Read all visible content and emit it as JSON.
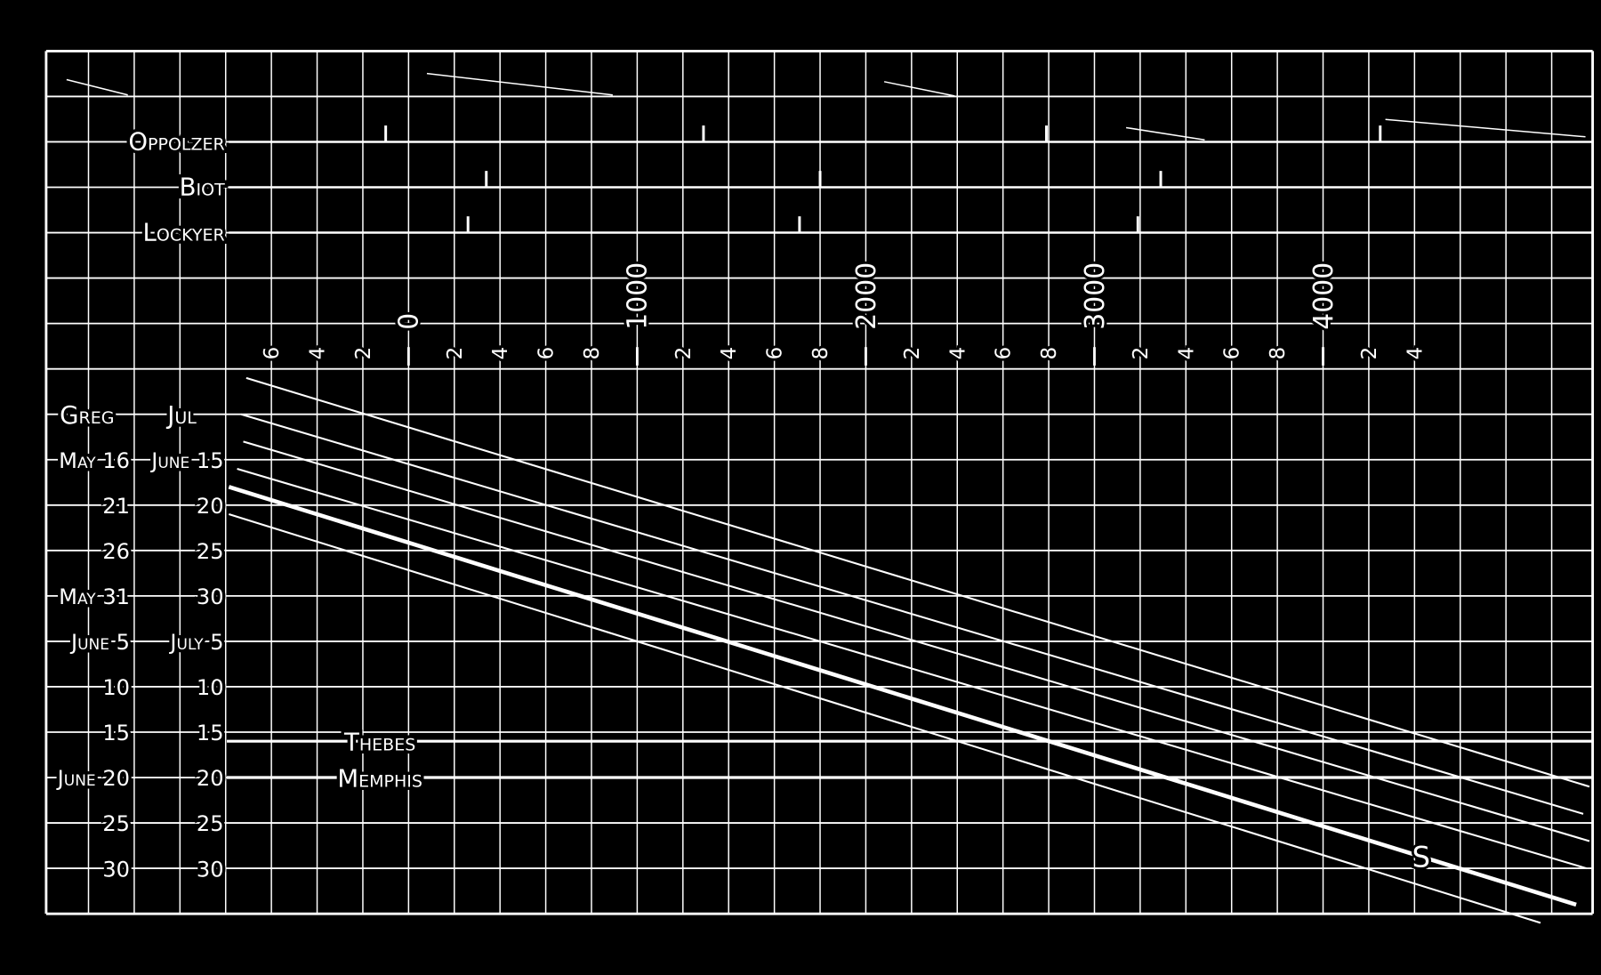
{
  "chart_data": {
    "type": "line",
    "background": "#000000",
    "foreground": "#ffffff",
    "grid": true,
    "xlim": [
      -786,
      5179
    ],
    "x_major_labels": [
      {
        "value": 0,
        "label": "0"
      },
      {
        "value": 1000,
        "label": "1000"
      },
      {
        "value": 2000,
        "label": "2000"
      },
      {
        "value": 3000,
        "label": "3000"
      },
      {
        "value": 4000,
        "label": "4000"
      }
    ],
    "x_minor_labels": [
      {
        "value": -600,
        "label": "6"
      },
      {
        "value": -400,
        "label": "4"
      },
      {
        "value": -200,
        "label": "2"
      },
      {
        "value": 200,
        "label": "2"
      },
      {
        "value": 400,
        "label": "4"
      },
      {
        "value": 600,
        "label": "6"
      },
      {
        "value": 800,
        "label": "8"
      },
      {
        "value": 1200,
        "label": "2"
      },
      {
        "value": 1400,
        "label": "4"
      },
      {
        "value": 1600,
        "label": "6"
      },
      {
        "value": 1800,
        "label": "8"
      },
      {
        "value": 2200,
        "label": "2"
      },
      {
        "value": 2400,
        "label": "4"
      },
      {
        "value": 2600,
        "label": "6"
      },
      {
        "value": 2800,
        "label": "8"
      },
      {
        "value": 3200,
        "label": "2"
      },
      {
        "value": 3400,
        "label": "4"
      },
      {
        "value": 3600,
        "label": "6"
      },
      {
        "value": 3800,
        "label": "8"
      },
      {
        "value": 4200,
        "label": "2"
      },
      {
        "value": 4400,
        "label": "4"
      }
    ],
    "date_headers": {
      "greg": "Greg",
      "jul": "Jul"
    },
    "date_rows": [
      {
        "greg": "May 16",
        "jul": "June 15"
      },
      {
        "greg": "21",
        "jul": "20"
      },
      {
        "greg": "26",
        "jul": "25"
      },
      {
        "greg": "May 31",
        "jul": "30"
      },
      {
        "greg": "June 5",
        "jul": "July 5"
      },
      {
        "greg": "10",
        "jul": "10"
      },
      {
        "greg": "15",
        "jul": "15"
      },
      {
        "greg": "June 20",
        "jul": "20"
      },
      {
        "greg": "25",
        "jul": "25"
      },
      {
        "greg": "30",
        "jul": "30"
      }
    ],
    "series": [
      {
        "points": [
          {
            "year": -710,
            "jul": "June 6"
          },
          {
            "year": 5165,
            "jul": "July 21"
          }
        ],
        "bold": false
      },
      {
        "points": [
          {
            "year": -732,
            "jul": "June 10"
          },
          {
            "year": 5138,
            "jul": "July 24"
          }
        ],
        "bold": false
      },
      {
        "points": [
          {
            "year": -723,
            "jul": "June 13"
          },
          {
            "year": 5165,
            "jul": "July 27"
          }
        ],
        "bold": false
      },
      {
        "points": [
          {
            "year": -750,
            "jul": "June 16"
          },
          {
            "year": 5152,
            "jul": "July 30"
          }
        ],
        "bold": false
      },
      {
        "name": "S",
        "points": [
          {
            "year": -786,
            "jul": "June 18"
          },
          {
            "year": 5107,
            "jul": "August 3"
          }
        ],
        "bold": true
      },
      {
        "points": [
          {
            "year": -786,
            "jul": "June 21"
          },
          {
            "year": 4951,
            "jul": "August 5"
          }
        ],
        "bold": false
      }
    ],
    "reference_lines": [
      {
        "label": "Thebes",
        "jul": "July 16"
      },
      {
        "label": "Memphis",
        "jul": "July 20"
      }
    ],
    "epoch_rows": [
      {
        "label": "Oppolzer",
        "years": [
          -100,
          1290,
          2790,
          4250
        ]
      },
      {
        "label": "Biot",
        "years": [
          340,
          1800,
          3290
        ]
      },
      {
        "label": "Lockyer",
        "years": [
          260,
          1710,
          3190
        ]
      }
    ]
  }
}
